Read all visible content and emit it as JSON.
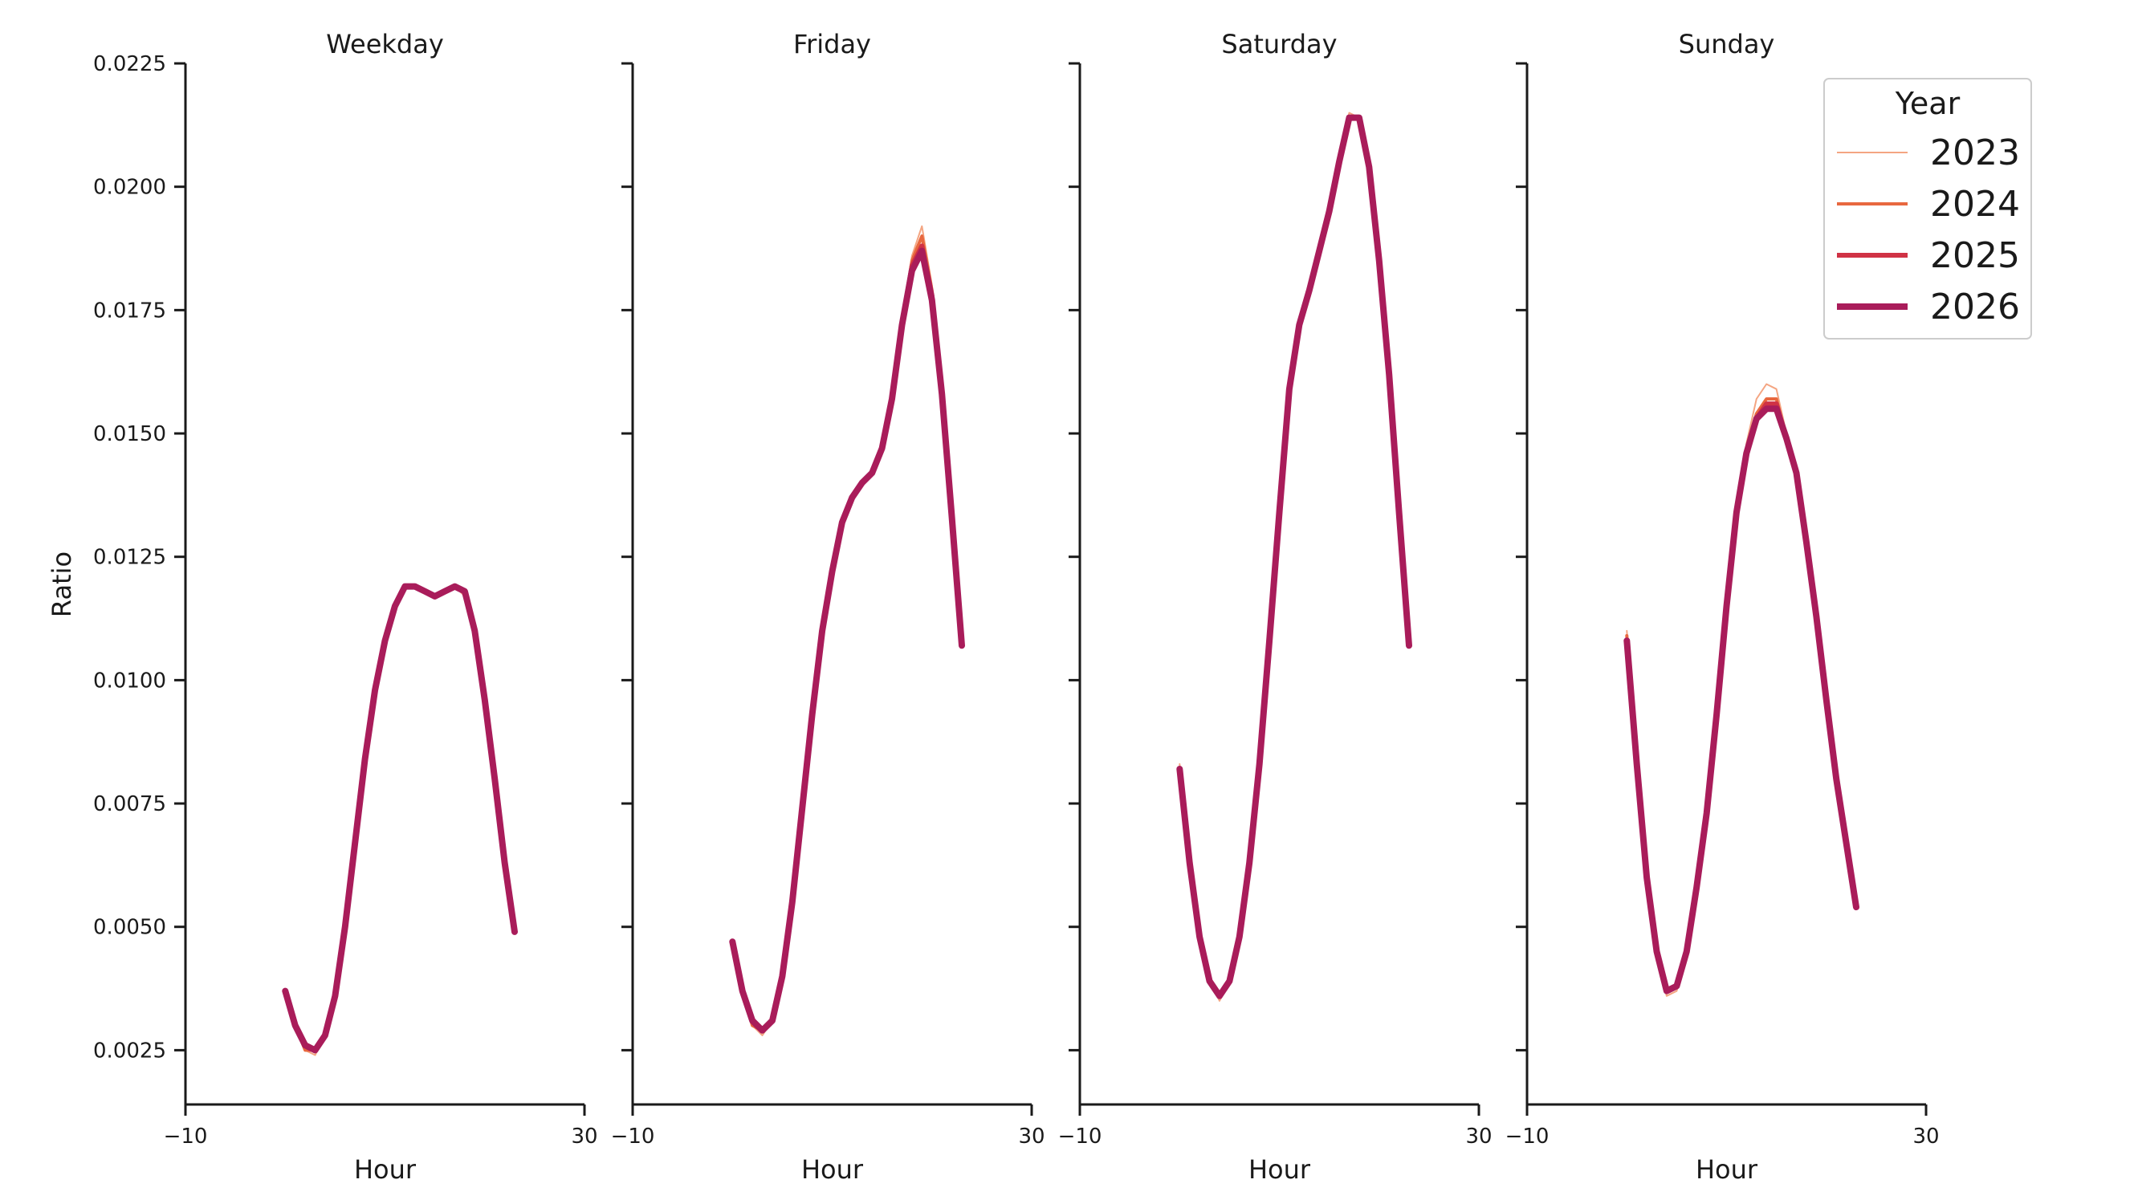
{
  "chart_data": {
    "type": "line",
    "ylabel": "Ratio",
    "xlabel": "Hour",
    "xlim": [
      -10,
      30
    ],
    "ylim": [
      0.0014,
      0.0225
    ],
    "xticks": [
      -10,
      30
    ],
    "xtick_labels": [
      "−10",
      "30"
    ],
    "yticks": [
      0.0025,
      0.005,
      0.0075,
      0.01,
      0.0125,
      0.015,
      0.0175,
      0.02,
      0.0225
    ],
    "ytick_labels": [
      "0.0025",
      "0.0050",
      "0.0075",
      "0.0100",
      "0.0125",
      "0.0150",
      "0.0175",
      "0.0200",
      "0.0225"
    ],
    "grid": false,
    "legend": {
      "title": "Year",
      "placement": "top-right",
      "entries": [
        {
          "label": "2023",
          "color": "#f4a582"
        },
        {
          "label": "2024",
          "color": "#e8683f"
        },
        {
          "label": "2025",
          "color": "#d03245"
        },
        {
          "label": "2026",
          "color": "#a91c5a"
        }
      ]
    },
    "x": [
      0,
      1,
      2,
      3,
      4,
      5,
      6,
      7,
      8,
      9,
      10,
      11,
      12,
      13,
      14,
      15,
      16,
      17,
      18,
      19,
      20,
      21,
      22,
      23
    ],
    "panels": [
      {
        "title": "Weekday",
        "series": [
          {
            "name": "2023",
            "values": [
              0.0037,
              0.0029,
              0.0025,
              0.0024,
              0.0028,
              0.0036,
              0.005,
              0.0067,
              0.0084,
              0.0098,
              0.0108,
              0.0115,
              0.0119,
              0.0119,
              0.0118,
              0.0117,
              0.0118,
              0.0119,
              0.0117,
              0.011,
              0.0096,
              0.008,
              0.0063,
              0.0049
            ]
          },
          {
            "name": "2024",
            "values": [
              0.0037,
              0.003,
              0.0025,
              0.0025,
              0.0028,
              0.0036,
              0.005,
              0.0067,
              0.0084,
              0.0098,
              0.0108,
              0.0115,
              0.0119,
              0.0119,
              0.0118,
              0.0117,
              0.0118,
              0.0119,
              0.0118,
              0.011,
              0.0096,
              0.008,
              0.0063,
              0.0049
            ]
          },
          {
            "name": "2025",
            "values": [
              0.0037,
              0.003,
              0.0026,
              0.0025,
              0.0028,
              0.0036,
              0.005,
              0.0067,
              0.0084,
              0.0098,
              0.0108,
              0.0115,
              0.0119,
              0.0119,
              0.0118,
              0.0117,
              0.0118,
              0.0119,
              0.0118,
              0.011,
              0.0096,
              0.008,
              0.0063,
              0.0049
            ]
          },
          {
            "name": "2026",
            "values": [
              0.0037,
              0.003,
              0.0026,
              0.0025,
              0.0028,
              0.0036,
              0.005,
              0.0067,
              0.0084,
              0.0098,
              0.0108,
              0.0115,
              0.0119,
              0.0119,
              0.0118,
              0.0117,
              0.0118,
              0.0119,
              0.0118,
              0.011,
              0.0096,
              0.008,
              0.0063,
              0.0049
            ]
          }
        ]
      },
      {
        "title": "Friday",
        "series": [
          {
            "name": "2023",
            "values": [
              0.0047,
              0.0037,
              0.003,
              0.0028,
              0.0031,
              0.004,
              0.0055,
              0.0074,
              0.0093,
              0.011,
              0.0122,
              0.0132,
              0.0137,
              0.014,
              0.0142,
              0.0148,
              0.0158,
              0.0173,
              0.0186,
              0.0192,
              0.018,
              0.016,
              0.0133,
              0.0107
            ]
          },
          {
            "name": "2024",
            "values": [
              0.0047,
              0.0037,
              0.003,
              0.0029,
              0.0031,
              0.004,
              0.0055,
              0.0074,
              0.0093,
              0.011,
              0.0122,
              0.0132,
              0.0137,
              0.014,
              0.0142,
              0.0147,
              0.0157,
              0.0172,
              0.0185,
              0.019,
              0.0179,
              0.0159,
              0.0133,
              0.0107
            ]
          },
          {
            "name": "2025",
            "values": [
              0.0047,
              0.0037,
              0.0031,
              0.0029,
              0.0031,
              0.004,
              0.0055,
              0.0074,
              0.0093,
              0.011,
              0.0122,
              0.0132,
              0.0137,
              0.014,
              0.0142,
              0.0147,
              0.0157,
              0.0172,
              0.0184,
              0.0188,
              0.0178,
              0.0158,
              0.0133,
              0.0107
            ]
          },
          {
            "name": "2026",
            "values": [
              0.0047,
              0.0037,
              0.0031,
              0.0029,
              0.0031,
              0.004,
              0.0055,
              0.0074,
              0.0093,
              0.011,
              0.0122,
              0.0132,
              0.0137,
              0.014,
              0.0142,
              0.0147,
              0.0157,
              0.0172,
              0.0183,
              0.0187,
              0.0177,
              0.0158,
              0.0133,
              0.0107
            ]
          }
        ]
      },
      {
        "title": "Saturday",
        "series": [
          {
            "name": "2023",
            "values": [
              0.0083,
              0.0063,
              0.0048,
              0.0039,
              0.0035,
              0.0039,
              0.0048,
              0.0063,
              0.0083,
              0.0108,
              0.0134,
              0.0159,
              0.0173,
              0.018,
              0.0187,
              0.0195,
              0.0205,
              0.0215,
              0.0214,
              0.0204,
              0.0185,
              0.0162,
              0.0134,
              0.0107
            ]
          },
          {
            "name": "2024",
            "values": [
              0.0082,
              0.0063,
              0.0048,
              0.0039,
              0.0036,
              0.0039,
              0.0048,
              0.0063,
              0.0083,
              0.0108,
              0.0134,
              0.0159,
              0.0172,
              0.0179,
              0.0187,
              0.0195,
              0.0205,
              0.0214,
              0.0214,
              0.0204,
              0.0185,
              0.0162,
              0.0134,
              0.0107
            ]
          },
          {
            "name": "2025",
            "values": [
              0.0082,
              0.0063,
              0.0048,
              0.0039,
              0.0036,
              0.0039,
              0.0048,
              0.0063,
              0.0083,
              0.0108,
              0.0134,
              0.0159,
              0.0172,
              0.0179,
              0.0187,
              0.0195,
              0.0205,
              0.0214,
              0.0214,
              0.0204,
              0.0185,
              0.0162,
              0.0134,
              0.0107
            ]
          },
          {
            "name": "2026",
            "values": [
              0.0082,
              0.0063,
              0.0048,
              0.0039,
              0.0036,
              0.0039,
              0.0048,
              0.0063,
              0.0083,
              0.0108,
              0.0134,
              0.0159,
              0.0172,
              0.0179,
              0.0187,
              0.0195,
              0.0205,
              0.0214,
              0.0214,
              0.0204,
              0.0185,
              0.0162,
              0.0134,
              0.0107
            ]
          }
        ]
      },
      {
        "title": "Sunday",
        "series": [
          {
            "name": "2023",
            "values": [
              0.011,
              0.0083,
              0.006,
              0.0044,
              0.0036,
              0.0037,
              0.0045,
              0.0058,
              0.0073,
              0.0093,
              0.0115,
              0.0134,
              0.0148,
              0.0157,
              0.016,
              0.0159,
              0.015,
              0.0142,
              0.0128,
              0.0113,
              0.0096,
              0.008,
              0.0067,
              0.0054
            ]
          },
          {
            "name": "2024",
            "values": [
              0.0109,
              0.0083,
              0.006,
              0.0045,
              0.0037,
              0.0038,
              0.0045,
              0.0058,
              0.0073,
              0.0093,
              0.0115,
              0.0134,
              0.0147,
              0.0154,
              0.0157,
              0.0157,
              0.0149,
              0.0142,
              0.0128,
              0.0113,
              0.0096,
              0.008,
              0.0067,
              0.0054
            ]
          },
          {
            "name": "2025",
            "values": [
              0.0108,
              0.0083,
              0.006,
              0.0045,
              0.0037,
              0.0038,
              0.0045,
              0.0058,
              0.0073,
              0.0093,
              0.0115,
              0.0134,
              0.0146,
              0.0153,
              0.0156,
              0.0156,
              0.0149,
              0.0142,
              0.0128,
              0.0113,
              0.0096,
              0.008,
              0.0067,
              0.0054
            ]
          },
          {
            "name": "2026",
            "values": [
              0.0108,
              0.0083,
              0.006,
              0.0045,
              0.0037,
              0.0038,
              0.0045,
              0.0058,
              0.0073,
              0.0093,
              0.0115,
              0.0134,
              0.0146,
              0.0153,
              0.0155,
              0.0155,
              0.0149,
              0.0142,
              0.0128,
              0.0113,
              0.0096,
              0.008,
              0.0067,
              0.0054
            ]
          }
        ]
      }
    ]
  }
}
